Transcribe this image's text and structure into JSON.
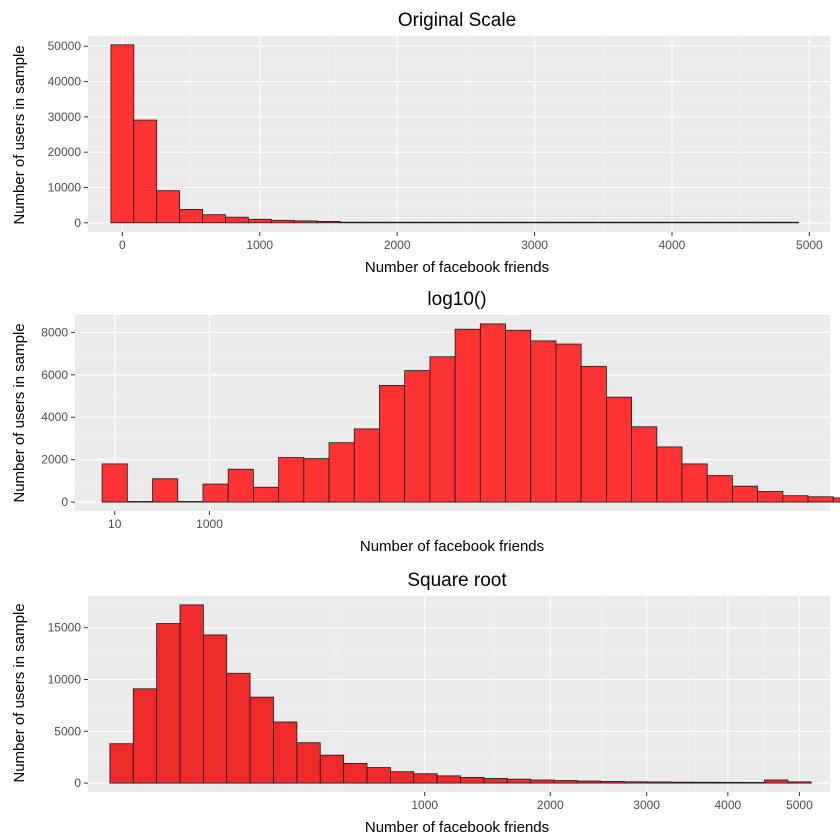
{
  "colors": {
    "panel": "#ebebeb",
    "grid_major": "#ffffff",
    "bar_fill": "#ff3333",
    "bar_stroke": "#1a1a1a",
    "tick_text": "#4d4d4d"
  },
  "chart_data": [
    {
      "type": "bar",
      "title": "Original Scale",
      "xlabel": "Number of facebook friends",
      "ylabel": "Number of users in sample",
      "x_scale": "linear",
      "xlim": [
        -250,
        5150
      ],
      "ylim": [
        -2600,
        52900
      ],
      "x_ticks": [
        0,
        1000,
        2000,
        3000,
        4000,
        5000
      ],
      "x_tick_labels": [
        "0",
        "1000",
        "2000",
        "3000",
        "4000",
        "5000"
      ],
      "y_ticks": [
        0,
        10000,
        20000,
        30000,
        40000,
        50000
      ],
      "y_tick_labels": [
        "0",
        "10000",
        "20000",
        "30000",
        "40000",
        "50000"
      ],
      "bin_width": 166.8,
      "bin_start": -83.4,
      "values": [
        50400,
        29100,
        9100,
        3800,
        2300,
        1600,
        1000,
        700,
        550,
        400,
        150,
        120,
        100,
        90,
        80,
        70,
        60,
        55,
        50,
        45,
        40,
        35,
        30,
        28,
        25,
        22,
        20,
        18,
        16,
        150
      ],
      "fill": "#ff3333"
    },
    {
      "type": "bar",
      "title": "log10()",
      "xlabel": "Number of facebook friends",
      "ylabel": "Number of users in sample",
      "x_scale": "log10",
      "xlim": [
        -0.2,
        3.6
      ],
      "ylim": [
        -420,
        8820
      ],
      "x_ticks": [
        1,
        3
      ],
      "x_tick_labels": [
        "10",
        "1000"
      ],
      "y_ticks": [
        0,
        2000,
        4000,
        6000,
        8000
      ],
      "y_tick_labels": [
        "0",
        "2000",
        "4000",
        "6000",
        "8000"
      ],
      "bin_width": 0.1269,
      "bin_start": -0.0635,
      "values": [
        1800,
        0,
        1100,
        0,
        850,
        1550,
        700,
        2100,
        2050,
        2800,
        3450,
        5500,
        6200,
        6850,
        8150,
        8400,
        8100,
        7600,
        7450,
        6400,
        4950,
        3550,
        2600,
        1800,
        1250,
        750,
        500,
        300,
        250,
        200
      ],
      "fill": "#ff3333"
    },
    {
      "type": "bar",
      "title": "Square root",
      "xlabel": "Number of facebook friends",
      "ylabel": "Number of users in sample",
      "x_scale": "sqrt",
      "xlim": [
        -3.5,
        73.9
      ],
      "ylim": [
        -860,
        18060
      ],
      "x_ticks": [
        1000,
        2000,
        3000,
        4000,
        5000
      ],
      "x_tick_labels": [
        "1000",
        "2000",
        "3000",
        "4000",
        "5000"
      ],
      "y_ticks": [
        0,
        5000,
        10000,
        15000
      ],
      "y_tick_labels": [
        "0",
        "5000",
        "10000",
        "15000"
      ],
      "bin_width": 2.4386,
      "bin_start": -1.2193,
      "values": [
        3800,
        9100,
        15400,
        17200,
        14300,
        10600,
        8300,
        5900,
        3900,
        2700,
        1900,
        1500,
        1100,
        900,
        700,
        550,
        450,
        380,
        300,
        250,
        200,
        160,
        130,
        110,
        90,
        80,
        70,
        60,
        300,
        120
      ],
      "fill": "#ee2a2a"
    }
  ]
}
